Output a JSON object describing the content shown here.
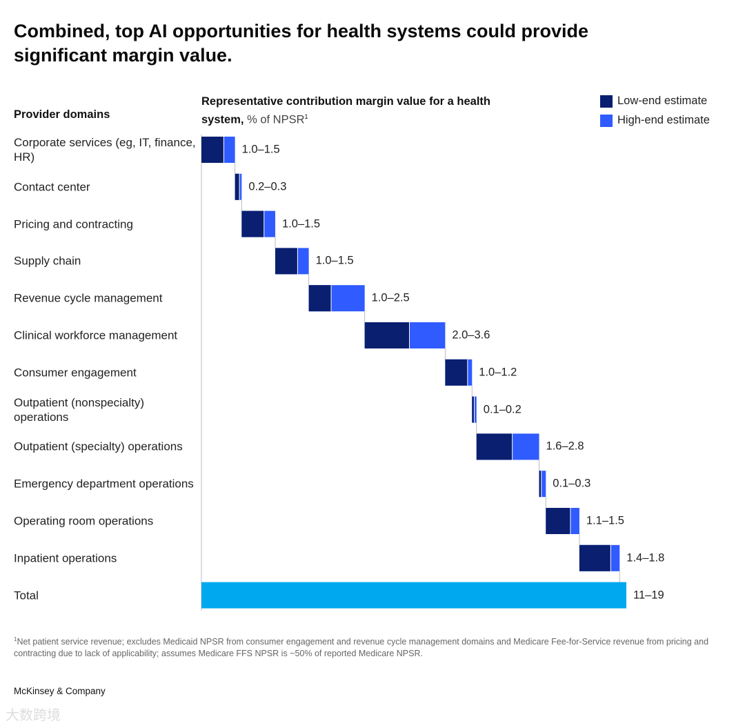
{
  "title": "Combined, top AI opportunities for health systems could provide significant margin value.",
  "footnote": "Net patient service revenue; excludes Medicaid NPSR from consumer engagement and revenue cycle management domains and Medicare Fee-for-Service revenue from pricing and contracting due to lack of applicability; assumes Medicare FFS NPSR is ~50% of reported Medicare NPSR.",
  "footnote_marker": "1",
  "brand": "McKinsey & Company",
  "watermark": "大数跨境",
  "chart_data": {
    "type": "bar",
    "subtype": "waterfall-range",
    "row_header": "Provider domains",
    "value_header_bold": "Representative contribution margin value for a health system,",
    "value_header_unit": "% of NPSR",
    "value_header_sup": "1",
    "legend": [
      {
        "label": "Low-end estimate",
        "color": "#0a1f6f"
      },
      {
        "label": "High-end estimate",
        "color": "#2f5bff"
      }
    ],
    "total_color": "#00a8f0",
    "categories": [
      "Corporate services (eg, IT, finance, HR)",
      "Contact center",
      "Pricing and contracting",
      "Supply chain",
      "Revenue cycle management",
      "Clinical workforce management",
      "Consumer engagement",
      "Outpatient (nonspecialty) operations",
      "Outpatient (specialty) operations",
      "Emergency department operations",
      "Operating room operations",
      "Inpatient operations"
    ],
    "low": [
      1.0,
      0.2,
      1.0,
      1.0,
      1.0,
      2.0,
      1.0,
      0.1,
      1.6,
      0.1,
      1.1,
      1.4
    ],
    "high": [
      1.5,
      0.3,
      1.5,
      1.5,
      2.5,
      3.6,
      1.2,
      0.2,
      2.8,
      0.3,
      1.5,
      1.8
    ],
    "labels": [
      "1.0–1.5",
      "0.2–0.3",
      "1.0–1.5",
      "1.0–1.5",
      "1.0–2.5",
      "2.0–3.6",
      "1.0–1.2",
      "0.1–0.2",
      "1.6–2.8",
      "0.1–0.3",
      "1.1–1.5",
      "1.4–1.8"
    ],
    "total": {
      "label": "Total",
      "low": 11,
      "high": 19,
      "value_label": "11–19"
    },
    "xlim": [
      0,
      19
    ]
  }
}
